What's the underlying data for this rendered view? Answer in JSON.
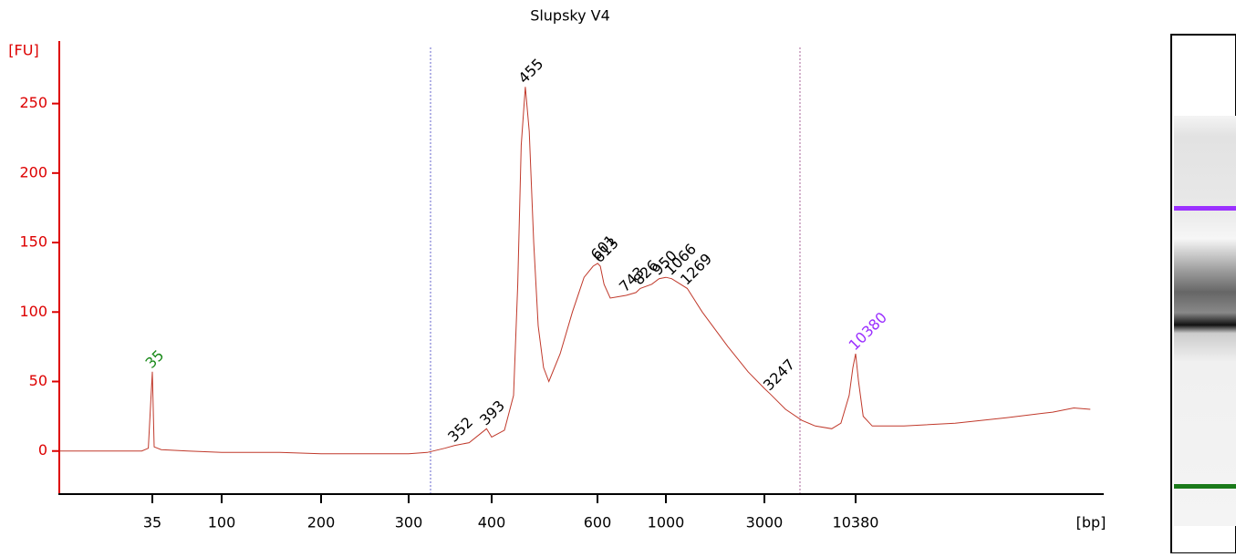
{
  "chart_data": {
    "type": "line",
    "title": "Slupsky V4",
    "y_label": "[FU]",
    "x_label": "[bp]",
    "x_scale": "log",
    "xlim": [
      9,
      300000
    ],
    "xticks": [
      35,
      100,
      200,
      300,
      400,
      600,
      1000,
      3000,
      10380
    ],
    "ylim": [
      -31,
      295
    ],
    "yticks": [
      0,
      50,
      100,
      150,
      200,
      250
    ],
    "color": "#c0392b",
    "x": [
      9,
      20,
      30,
      33,
      35,
      36,
      40,
      60,
      100,
      150,
      200,
      250,
      300,
      320,
      340,
      352,
      370,
      393,
      400,
      420,
      435,
      442,
      448,
      455,
      462,
      470,
      478,
      488,
      498,
      520,
      545,
      570,
      590,
      601,
      613,
      630,
      660,
      700,
      743,
      800,
      826,
      900,
      950,
      1000,
      1066,
      1150,
      1269,
      1500,
      2000,
      2500,
      3000,
      3247,
      4000,
      5000,
      6000,
      7500,
      8500,
      9500,
      10000,
      10380,
      10800,
      11500,
      13000,
      20000,
      40000,
      80000,
      150000,
      200000,
      250000
    ],
    "values": [
      0,
      0,
      0,
      2,
      57,
      3,
      1,
      0,
      -1,
      -1,
      -2,
      -2,
      -2,
      -1,
      2,
      4,
      6,
      16,
      10,
      15,
      40,
      120,
      220,
      262,
      230,
      150,
      90,
      60,
      50,
      70,
      100,
      125,
      133,
      135,
      133,
      120,
      110,
      111,
      112,
      114,
      117,
      120,
      124,
      125,
      124,
      121,
      117,
      100,
      75,
      57,
      45,
      41,
      30,
      22,
      18,
      16,
      20,
      40,
      60,
      70,
      50,
      25,
      18,
      18,
      20,
      24,
      28,
      31,
      30
    ],
    "peaks": [
      {
        "bp": 35,
        "fu": 57,
        "color": "#1a8a1a"
      },
      {
        "bp": 352,
        "fu": 4,
        "color": "#000000"
      },
      {
        "bp": 393,
        "fu": 16,
        "color": "#000000"
      },
      {
        "bp": 455,
        "fu": 262,
        "color": "#000000"
      },
      {
        "bp": 601,
        "fu": 135,
        "color": "#000000"
      },
      {
        "bp": 613,
        "fu": 133,
        "color": "#000000"
      },
      {
        "bp": 743,
        "fu": 112,
        "color": "#000000"
      },
      {
        "bp": 826,
        "fu": 117,
        "color": "#000000"
      },
      {
        "bp": 950,
        "fu": 124,
        "color": "#000000"
      },
      {
        "bp": 1066,
        "fu": 124,
        "color": "#000000"
      },
      {
        "bp": 1269,
        "fu": 117,
        "color": "#000000"
      },
      {
        "bp": 3247,
        "fu": 41,
        "color": "#000000"
      },
      {
        "bp": 10380,
        "fu": 70,
        "color": "#9b30ff"
      }
    ]
  }
}
